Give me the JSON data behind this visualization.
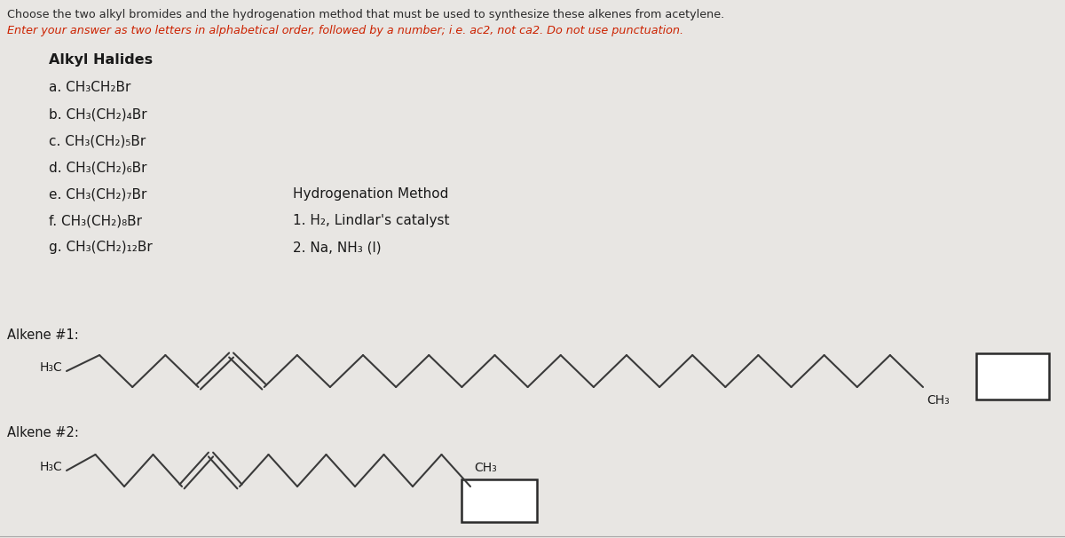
{
  "title_line1": "Choose the two alkyl bromides and the hydrogenation method that must be used to synthesize these alkenes from acetylene.",
  "title_line2": "Enter your answer as two letters in alphabetical order, followed by a number; i.e. ac2, not ca2. Do not use punctuation.",
  "bg_color": "#e8e6e3",
  "alkyl_halides_header": "Alkyl Halides",
  "alkyl_halides": [
    "a. CH₃CH₂Br",
    "b. CH₃(CH₂)₄Br",
    "c. CH₃(CH₂)₅Br",
    "d. CH₃(CH₂)₆Br",
    "e. CH₃(CH₂)₇Br",
    "f. CH₃(CH₂)₈Br",
    "g. CH₃(CH₂)₁₂Br"
  ],
  "hydro_header": "Hydrogenation Method",
  "hydro_items": [
    "1. H₂, Lindlar's catalyst",
    "2. Na, NH₃ (l)"
  ],
  "alkene1_label": "Alkene #1:",
  "alkene2_label": "Alkene #2:",
  "h3c_label": "H₃C",
  "ch3_label": "CH₃",
  "title1_fontsize": 9.2,
  "title2_fontsize": 9.2,
  "header_fontsize": 11.5,
  "list_fontsize": 11.0,
  "label_fontsize": 10.5
}
